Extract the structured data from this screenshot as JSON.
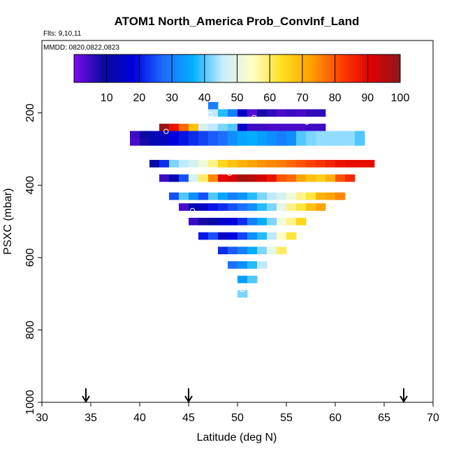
{
  "chart_data": {
    "type": "heatmap",
    "title": "ATOM1 North_America Prob_ConvInf_Land",
    "flights_note": "Flts: 9,10,11",
    "dates_note": "MMDD: 0820,0822,0823",
    "xlabel": "Latitude (deg N)",
    "ylabel": "PSXC (mbar)",
    "xlim": [
      30,
      70
    ],
    "ylim": [
      1000,
      0
    ],
    "x_ticks": [
      "30",
      "35",
      "40",
      "45",
      "50",
      "55",
      "60",
      "65",
      "70"
    ],
    "y_ticks": [
      "200",
      "400",
      "600",
      "800",
      "1000"
    ],
    "colorbar": {
      "range": [
        0,
        100
      ],
      "tick_labels": [
        "10",
        "20",
        "30",
        "40",
        "50",
        "60",
        "70",
        "80",
        "90",
        "100"
      ],
      "stops": [
        "#7a0cf0",
        "#0a0a9c",
        "#0000e0",
        "#1e6aff",
        "#00b0ff",
        "#c8ecff",
        "#ffffc8",
        "#ffe020",
        "#ffa000",
        "#ff4000",
        "#e00000",
        "#8b1a1a"
      ]
    },
    "arrows_latitude": [
      34.5,
      45,
      67
    ],
    "grid_dlat": 1,
    "grid_dp": 20,
    "cells": [
      [
        47,
        170,
        30
      ],
      [
        47,
        190,
        45
      ],
      [
        48,
        190,
        38
      ],
      [
        49,
        190,
        30
      ],
      [
        50,
        190,
        15
      ],
      [
        51,
        190,
        3
      ],
      [
        52,
        190,
        8
      ],
      [
        53,
        190,
        6
      ],
      [
        54,
        190,
        4
      ],
      [
        55,
        190,
        5
      ],
      [
        56,
        190,
        4
      ],
      [
        57,
        190,
        6
      ],
      [
        58,
        190,
        6
      ],
      [
        42,
        230,
        98
      ],
      [
        43,
        230,
        88
      ],
      [
        44,
        230,
        78
      ],
      [
        45,
        230,
        68
      ],
      [
        46,
        230,
        48
      ],
      [
        47,
        230,
        45
      ],
      [
        48,
        230,
        42
      ],
      [
        49,
        230,
        40
      ],
      [
        50,
        230,
        15
      ],
      [
        51,
        230,
        5
      ],
      [
        52,
        230,
        5
      ],
      [
        53,
        230,
        4
      ],
      [
        54,
        230,
        4
      ],
      [
        55,
        230,
        4
      ],
      [
        56,
        230,
        4
      ],
      [
        57,
        230,
        5
      ],
      [
        58,
        230,
        5
      ],
      [
        39,
        250,
        5
      ],
      [
        40,
        250,
        10
      ],
      [
        41,
        250,
        12
      ],
      [
        42,
        250,
        14
      ],
      [
        43,
        250,
        18
      ],
      [
        44,
        250,
        20
      ],
      [
        45,
        250,
        22
      ],
      [
        46,
        250,
        24
      ],
      [
        47,
        250,
        26
      ],
      [
        48,
        250,
        28
      ],
      [
        49,
        250,
        32
      ],
      [
        50,
        250,
        35
      ],
      [
        51,
        250,
        36
      ],
      [
        52,
        250,
        34
      ],
      [
        53,
        250,
        32
      ],
      [
        54,
        250,
        30
      ],
      [
        55,
        250,
        32
      ],
      [
        56,
        250,
        40
      ],
      [
        57,
        250,
        42
      ],
      [
        58,
        250,
        43
      ],
      [
        59,
        250,
        43
      ],
      [
        60,
        250,
        43
      ],
      [
        61,
        250,
        43
      ],
      [
        62,
        250,
        40
      ],
      [
        39,
        270,
        4
      ],
      [
        40,
        270,
        8
      ],
      [
        41,
        270,
        12
      ],
      [
        42,
        270,
        14
      ],
      [
        43,
        270,
        18
      ],
      [
        44,
        270,
        20
      ],
      [
        45,
        270,
        22
      ],
      [
        46,
        270,
        24
      ],
      [
        47,
        270,
        26
      ],
      [
        48,
        270,
        28
      ],
      [
        49,
        270,
        32
      ],
      [
        50,
        270,
        35
      ],
      [
        51,
        270,
        36
      ],
      [
        52,
        270,
        34
      ],
      [
        53,
        270,
        32
      ],
      [
        54,
        270,
        30
      ],
      [
        55,
        270,
        32
      ],
      [
        56,
        270,
        40
      ],
      [
        57,
        270,
        42
      ],
      [
        58,
        270,
        43
      ],
      [
        59,
        270,
        43
      ],
      [
        60,
        270,
        43
      ],
      [
        61,
        270,
        43
      ],
      [
        62,
        270,
        40
      ],
      [
        41,
        330,
        10
      ],
      [
        42,
        330,
        22
      ],
      [
        43,
        330,
        42
      ],
      [
        44,
        330,
        45
      ],
      [
        45,
        330,
        48
      ],
      [
        46,
        330,
        52
      ],
      [
        47,
        330,
        58
      ],
      [
        48,
        330,
        65
      ],
      [
        49,
        330,
        68
      ],
      [
        50,
        330,
        70
      ],
      [
        51,
        330,
        72
      ],
      [
        52,
        330,
        74
      ],
      [
        53,
        330,
        75
      ],
      [
        54,
        330,
        76
      ],
      [
        55,
        330,
        78
      ],
      [
        56,
        330,
        80
      ],
      [
        57,
        330,
        82
      ],
      [
        58,
        330,
        84
      ],
      [
        59,
        330,
        86
      ],
      [
        60,
        330,
        88
      ],
      [
        61,
        330,
        89
      ],
      [
        62,
        330,
        89
      ],
      [
        63,
        330,
        89
      ],
      [
        42,
        370,
        5
      ],
      [
        43,
        370,
        12
      ],
      [
        44,
        370,
        25
      ],
      [
        45,
        370,
        48
      ],
      [
        46,
        370,
        60
      ],
      [
        47,
        370,
        75
      ],
      [
        48,
        370,
        90
      ],
      [
        49,
        370,
        92
      ],
      [
        50,
        370,
        97
      ],
      [
        51,
        370,
        95
      ],
      [
        52,
        370,
        92
      ],
      [
        53,
        370,
        88
      ],
      [
        54,
        370,
        80
      ],
      [
        55,
        370,
        78
      ],
      [
        56,
        370,
        72
      ],
      [
        57,
        370,
        68
      ],
      [
        58,
        370,
        66
      ],
      [
        59,
        370,
        70
      ],
      [
        60,
        370,
        80
      ],
      [
        61,
        370,
        85
      ],
      [
        43,
        420,
        25
      ],
      [
        44,
        420,
        40
      ],
      [
        45,
        420,
        32
      ],
      [
        46,
        420,
        25
      ],
      [
        47,
        420,
        40
      ],
      [
        48,
        420,
        35
      ],
      [
        49,
        420,
        30
      ],
      [
        50,
        420,
        33
      ],
      [
        51,
        420,
        38
      ],
      [
        52,
        420,
        42
      ],
      [
        53,
        420,
        45
      ],
      [
        54,
        420,
        48
      ],
      [
        55,
        420,
        52
      ],
      [
        56,
        420,
        58
      ],
      [
        57,
        420,
        62
      ],
      [
        58,
        420,
        70
      ],
      [
        59,
        420,
        72
      ],
      [
        60,
        420,
        75
      ],
      [
        44,
        450,
        4
      ],
      [
        45,
        450,
        12
      ],
      [
        46,
        450,
        14
      ],
      [
        47,
        450,
        20
      ],
      [
        48,
        450,
        22
      ],
      [
        49,
        450,
        25
      ],
      [
        50,
        450,
        28
      ],
      [
        51,
        450,
        32
      ],
      [
        52,
        450,
        38
      ],
      [
        53,
        450,
        42
      ],
      [
        54,
        450,
        50
      ],
      [
        55,
        450,
        58
      ],
      [
        56,
        450,
        62
      ],
      [
        57,
        450,
        68
      ],
      [
        58,
        450,
        72
      ],
      [
        45,
        490,
        5
      ],
      [
        46,
        490,
        8
      ],
      [
        47,
        490,
        10
      ],
      [
        48,
        490,
        15
      ],
      [
        49,
        490,
        18
      ],
      [
        50,
        490,
        22
      ],
      [
        51,
        490,
        30
      ],
      [
        52,
        490,
        36
      ],
      [
        53,
        490,
        42
      ],
      [
        54,
        490,
        52
      ],
      [
        55,
        490,
        58
      ],
      [
        56,
        490,
        65
      ],
      [
        46,
        530,
        20
      ],
      [
        47,
        530,
        25
      ],
      [
        48,
        530,
        15
      ],
      [
        49,
        530,
        18
      ],
      [
        50,
        530,
        24
      ],
      [
        51,
        530,
        32
      ],
      [
        52,
        530,
        38
      ],
      [
        53,
        530,
        45
      ],
      [
        54,
        530,
        55
      ],
      [
        55,
        530,
        62
      ],
      [
        48,
        570,
        22
      ],
      [
        49,
        570,
        26
      ],
      [
        50,
        570,
        30
      ],
      [
        51,
        570,
        36
      ],
      [
        52,
        570,
        42
      ],
      [
        53,
        570,
        50
      ],
      [
        54,
        570,
        60
      ],
      [
        49,
        610,
        28
      ],
      [
        50,
        610,
        32
      ],
      [
        51,
        610,
        38
      ],
      [
        52,
        610,
        45
      ],
      [
        50,
        650,
        34
      ],
      [
        51,
        650,
        40
      ],
      [
        50,
        690,
        42
      ]
    ],
    "markers": [
      [
        47.2,
        205
      ],
      [
        51.7,
        213
      ],
      [
        57.1,
        226
      ],
      [
        42.7,
        251
      ],
      [
        39.0,
        304
      ],
      [
        49.2,
        367
      ],
      [
        63.4,
        358
      ],
      [
        45.4,
        470
      ],
      [
        50.5,
        688
      ]
    ]
  }
}
